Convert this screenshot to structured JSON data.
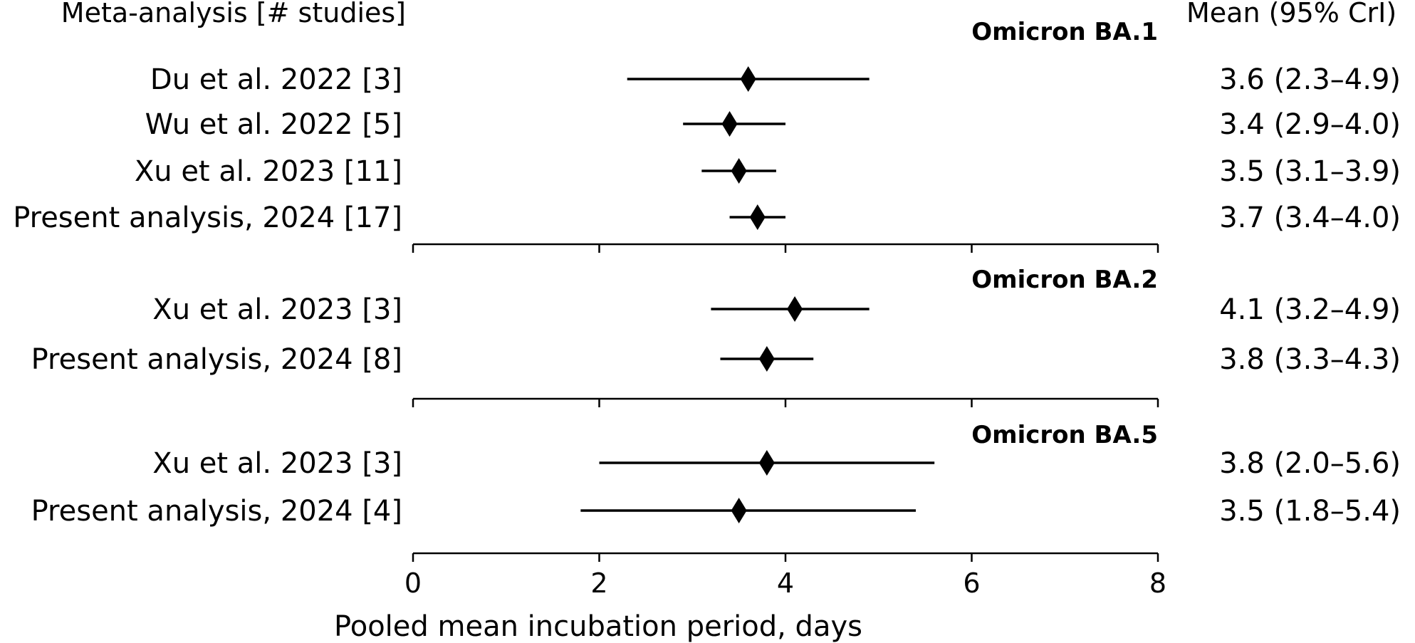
{
  "chart_data": {
    "type": "forest",
    "left_header": "Meta-analysis [# studies]",
    "right_header": "Mean (95% CrI)",
    "xlabel": "Pooled mean incubation period, days",
    "xlim": [
      0,
      8
    ],
    "xticks": [
      0,
      2,
      4,
      6,
      8
    ],
    "groups": [
      {
        "name": "Omicron BA.1",
        "rows": [
          {
            "label": "Du et al. 2022 [3]",
            "mean": 3.6,
            "lo": 2.3,
            "hi": 4.9,
            "text": "3.6 (2.3–4.9)"
          },
          {
            "label": "Wu et al. 2022 [5]",
            "mean": 3.4,
            "lo": 2.9,
            "hi": 4.0,
            "text": "3.4 (2.9–4.0)"
          },
          {
            "label": "Xu et al. 2023 [11]",
            "mean": 3.5,
            "lo": 3.1,
            "hi": 3.9,
            "text": "3.5 (3.1–3.9)"
          },
          {
            "label": "Present analysis, 2024 [17]",
            "mean": 3.7,
            "lo": 3.4,
            "hi": 4.0,
            "text": "3.7 (3.4–4.0)"
          }
        ]
      },
      {
        "name": "Omicron BA.2",
        "rows": [
          {
            "label": "Xu et al. 2023 [3]",
            "mean": 4.1,
            "lo": 3.2,
            "hi": 4.9,
            "text": "4.1 (3.2–4.9)"
          },
          {
            "label": "Present analysis, 2024 [8]",
            "mean": 3.8,
            "lo": 3.3,
            "hi": 4.3,
            "text": "3.8 (3.3–4.3)"
          }
        ]
      },
      {
        "name": "Omicron BA.5",
        "rows": [
          {
            "label": "Xu et al. 2023 [3]",
            "mean": 3.8,
            "lo": 2.0,
            "hi": 5.6,
            "text": "3.8 (2.0–5.6)"
          },
          {
            "label": "Present analysis, 2024 [4]",
            "mean": 3.5,
            "lo": 1.8,
            "hi": 5.4,
            "text": "3.5 (1.8–5.4)"
          }
        ]
      }
    ]
  }
}
